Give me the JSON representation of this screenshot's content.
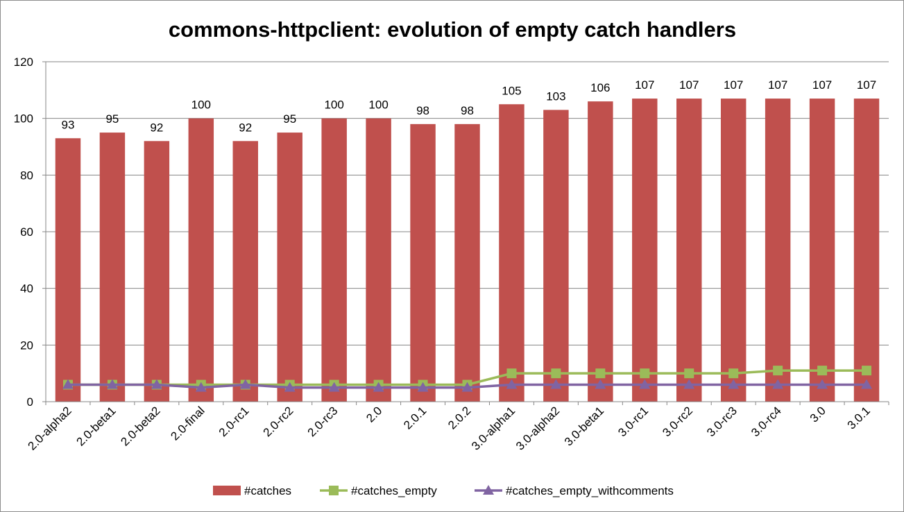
{
  "chart_data": {
    "type": "bar",
    "title": "commons-httpclient: evolution of empty catch handlers",
    "xlabel": "",
    "ylabel": "",
    "ylim": [
      0,
      120
    ],
    "y_ticks": [
      "0",
      "20",
      "40",
      "60",
      "80",
      "100",
      "120"
    ],
    "grid": true,
    "legend_position": "bottom",
    "categories": [
      "2.0-alpha2",
      "2.0-beta1",
      "2.0-beta2",
      "2.0-final",
      "2.0-rc1",
      "2.0-rc2",
      "2.0-rc3",
      "2.0",
      "2.0.1",
      "2.0.2",
      "3.0-alpha1",
      "3.0-alpha2",
      "3.0-beta1",
      "3.0-rc1",
      "3.0-rc2",
      "3.0-rc3",
      "3.0-rc4",
      "3.0",
      "3.0.1"
    ],
    "series": [
      {
        "name": "#catches",
        "type": "bar",
        "color": "#c0504d",
        "values": [
          93,
          95,
          92,
          100,
          92,
          95,
          100,
          100,
          98,
          98,
          105,
          103,
          106,
          107,
          107,
          107,
          107,
          107,
          107
        ],
        "data_labels": [
          "93",
          "95",
          "92",
          "100",
          "92",
          "95",
          "100",
          "100",
          "98",
          "98",
          "105",
          "103",
          "106",
          "107",
          "107",
          "107",
          "107",
          "107",
          "107"
        ]
      },
      {
        "name": "#catches_empty",
        "type": "line",
        "marker": "square",
        "color": "#9bbb59",
        "values": [
          6,
          6,
          6,
          6,
          6,
          6,
          6,
          6,
          6,
          6,
          10,
          10,
          10,
          10,
          10,
          10,
          11,
          11,
          11
        ]
      },
      {
        "name": "#catches_empty_withcomments",
        "type": "line",
        "marker": "triangle",
        "color": "#8064a2",
        "values": [
          6,
          6,
          6,
          5,
          6,
          5,
          5,
          5,
          5,
          5,
          6,
          6,
          6,
          6,
          6,
          6,
          6,
          6,
          6
        ]
      }
    ]
  }
}
